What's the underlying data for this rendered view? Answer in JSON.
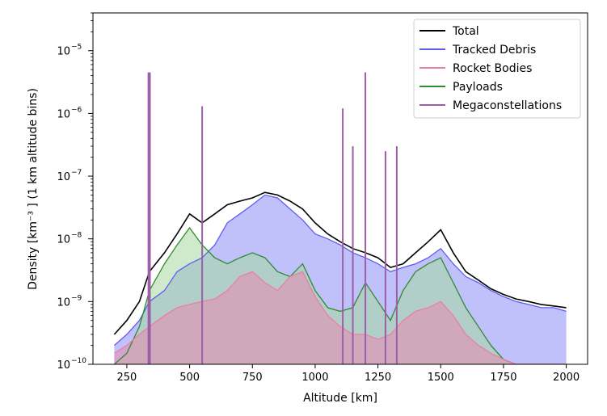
{
  "chart_data": {
    "type": "area",
    "title": "",
    "xlabel": "Altitude [km]",
    "ylabel": "Density [km⁻³ ] (1 km altitude bins)",
    "xlim": [
      115,
      2085
    ],
    "ylim": [
      1e-10,
      4e-05
    ],
    "yscale": "log",
    "grid": false,
    "legend_position": "top-right",
    "x_ticks": [
      {
        "value": 250,
        "label": "250"
      },
      {
        "value": 500,
        "label": "500"
      },
      {
        "value": 750,
        "label": "750"
      },
      {
        "value": 1000,
        "label": "1000"
      },
      {
        "value": 1250,
        "label": "1250"
      },
      {
        "value": 1500,
        "label": "1500"
      },
      {
        "value": 1750,
        "label": "1750"
      },
      {
        "value": 2000,
        "label": "2000"
      }
    ],
    "y_ticks": [
      {
        "exp": -10,
        "base": "10",
        "sup": "−10"
      },
      {
        "exp": -9,
        "base": "10",
        "sup": "−9"
      },
      {
        "exp": -8,
        "base": "10",
        "sup": "−8"
      },
      {
        "exp": -7,
        "base": "10",
        "sup": "−7"
      },
      {
        "exp": -6,
        "base": "10",
        "sup": "−6"
      },
      {
        "exp": -5,
        "base": "10",
        "sup": "−5"
      }
    ],
    "series": [
      {
        "name": "Tracked Debris",
        "color": "#5d5df0",
        "fill": "#8c8cf5",
        "x": [
          200,
          250,
          300,
          340,
          400,
          450,
          500,
          550,
          600,
          650,
          700,
          750,
          800,
          850,
          900,
          950,
          1000,
          1050,
          1100,
          1150,
          1200,
          1250,
          1300,
          1350,
          1400,
          1450,
          1500,
          1550,
          1600,
          1650,
          1700,
          1750,
          1800,
          1850,
          1900,
          1950,
          2000
        ],
        "y": [
          2e-10,
          3e-10,
          5e-10,
          1e-09,
          1.5e-09,
          3e-09,
          4e-09,
          5e-09,
          8e-09,
          1.8e-08,
          2.5e-08,
          3.5e-08,
          5e-08,
          4.5e-08,
          3e-08,
          2e-08,
          1.2e-08,
          1e-08,
          8e-09,
          6e-09,
          5e-09,
          4e-09,
          3e-09,
          3.5e-09,
          4e-09,
          5e-09,
          7e-09,
          4e-09,
          2.5e-09,
          2e-09,
          1.5e-09,
          1.2e-09,
          1e-09,
          9e-10,
          8e-10,
          8e-10,
          7e-10
        ]
      },
      {
        "name": "Rocket Bodies",
        "color": "#e87fa6",
        "fill": "#e989b0",
        "x": [
          200,
          250,
          300,
          340,
          400,
          450,
          500,
          550,
          600,
          650,
          700,
          750,
          800,
          850,
          900,
          950,
          1000,
          1050,
          1100,
          1150,
          1200,
          1250,
          1300,
          1350,
          1400,
          1450,
          1500,
          1550,
          1600,
          1650,
          1700,
          1750,
          1800,
          1850,
          1900,
          1950,
          2000
        ],
        "y": [
          1.5e-10,
          2e-10,
          3e-10,
          4e-10,
          6e-10,
          8e-10,
          9e-10,
          1e-09,
          1.1e-09,
          1.5e-09,
          2.5e-09,
          3e-09,
          2e-09,
          1.5e-09,
          2.5e-09,
          3e-09,
          1.2e-09,
          6e-10,
          4e-10,
          3e-10,
          3e-10,
          2.5e-10,
          3e-10,
          5e-10,
          7e-10,
          8e-10,
          1e-09,
          6e-10,
          3e-10,
          2e-10,
          1.5e-10,
          1.2e-10,
          1e-10,
          1e-10,
          1e-10,
          1e-10,
          1e-10
        ]
      },
      {
        "name": "Payloads",
        "color": "#2e8b2e",
        "fill": "#a5d9a0",
        "x": [
          200,
          250,
          300,
          340,
          400,
          450,
          500,
          550,
          600,
          650,
          700,
          750,
          800,
          850,
          900,
          950,
          1000,
          1050,
          1100,
          1150,
          1200,
          1250,
          1300,
          1350,
          1400,
          1450,
          1500,
          1550,
          1600,
          1650,
          1700,
          1750,
          1800,
          1850,
          1900,
          1950,
          2000
        ],
        "y": [
          1e-10,
          1.5e-10,
          4e-10,
          1.5e-09,
          4e-09,
          8e-09,
          1.5e-08,
          8e-09,
          5e-09,
          4e-09,
          5e-09,
          6e-09,
          5e-09,
          3e-09,
          2.5e-09,
          4e-09,
          1.5e-09,
          8e-10,
          7e-10,
          8e-10,
          2e-09,
          1e-09,
          5e-10,
          1.5e-09,
          3e-09,
          4e-09,
          5e-09,
          2e-09,
          8e-10,
          4e-10,
          2e-10,
          1.2e-10,
          1e-10,
          1e-10,
          1e-10,
          1e-10,
          1e-10
        ]
      },
      {
        "name": "Total",
        "color": "#000000",
        "x": [
          200,
          250,
          300,
          340,
          400,
          450,
          500,
          550,
          600,
          650,
          700,
          750,
          800,
          850,
          900,
          950,
          1000,
          1050,
          1100,
          1150,
          1200,
          1250,
          1300,
          1350,
          1400,
          1450,
          1500,
          1550,
          1600,
          1650,
          1700,
          1750,
          1800,
          1850,
          1900,
          1950,
          2000
        ],
        "y": [
          3e-10,
          5e-10,
          1e-09,
          3e-09,
          6e-09,
          1.2e-08,
          2.5e-08,
          1.8e-08,
          2.5e-08,
          3.5e-08,
          4e-08,
          4.5e-08,
          5.5e-08,
          5e-08,
          4e-08,
          3e-08,
          1.8e-08,
          1.2e-08,
          9e-09,
          7e-09,
          6e-09,
          5e-09,
          3.5e-09,
          4e-09,
          6e-09,
          9e-09,
          1.4e-08,
          6e-09,
          3e-09,
          2.2e-09,
          1.6e-09,
          1.3e-09,
          1.1e-09,
          1e-09,
          9e-10,
          8.5e-10,
          8e-10
        ]
      },
      {
        "name": "Megaconstellations",
        "color": "#9b5fa8",
        "x": [
          336,
          342,
          550,
          1110,
          1150,
          1200,
          1280,
          1325
        ],
        "y": [
          4.5e-06,
          4.5e-06,
          1.3e-06,
          1.2e-06,
          3e-07,
          4.5e-06,
          2.5e-07,
          3e-07
        ]
      }
    ]
  }
}
